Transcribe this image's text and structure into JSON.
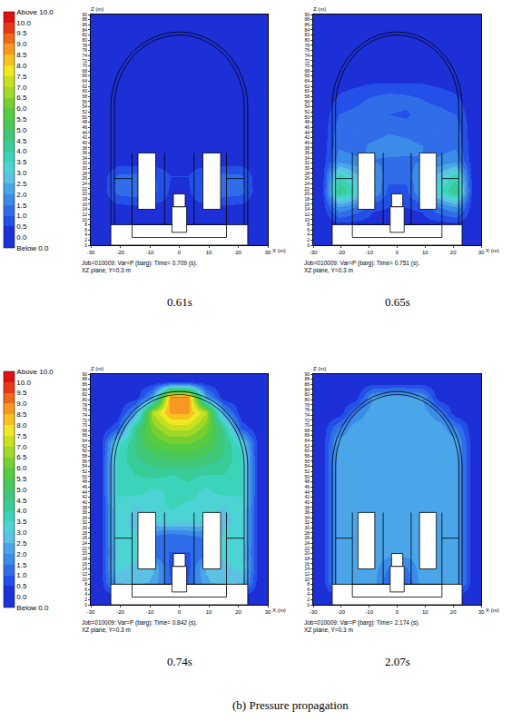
{
  "caption": "(b) Pressure propagation",
  "chart_data": [
    {
      "type": "heatmap",
      "title": "0.61s",
      "xlabel": "X (m)",
      "ylabel": "Z (m)",
      "notes": [
        "Job=010009: Var=P (barg): Time= 0.709 (s).",
        "XZ plane, Y=0.3 m"
      ],
      "x": [
        -27,
        -21,
        -15,
        -9,
        -3,
        3,
        9,
        15,
        21,
        27
      ],
      "y": [
        3,
        9,
        15,
        21,
        27,
        33,
        39,
        45,
        51,
        57,
        63,
        69,
        75,
        81,
        87
      ],
      "z": [
        [
          0.1,
          0.1,
          0.1,
          0.1,
          0.1,
          0.1,
          0.1,
          0.1,
          0.1,
          0.1
        ],
        [
          0.1,
          0.2,
          0.2,
          0.2,
          0.2,
          0.2,
          0.2,
          0.2,
          0.2,
          0.1
        ],
        [
          0.1,
          0.3,
          0.4,
          0.3,
          0.3,
          0.3,
          0.3,
          0.4,
          0.3,
          0.1
        ],
        [
          0.1,
          1.2,
          1.3,
          1.2,
          0.4,
          0.4,
          1.2,
          1.3,
          1.2,
          0.1
        ],
        [
          0.1,
          1.1,
          1.2,
          1.1,
          0.5,
          0.5,
          1.1,
          1.2,
          1.1,
          0.1
        ],
        [
          0.1,
          0.2,
          0.2,
          0.2,
          0.2,
          0.2,
          0.2,
          0.2,
          0.2,
          0.1
        ],
        [
          0.1,
          0.2,
          0.2,
          0.2,
          0.2,
          0.2,
          0.2,
          0.2,
          0.2,
          0.1
        ],
        [
          0.1,
          0.2,
          0.2,
          0.2,
          0.2,
          0.2,
          0.2,
          0.2,
          0.2,
          0.1
        ],
        [
          0.1,
          0.2,
          0.2,
          0.2,
          0.2,
          0.2,
          0.2,
          0.2,
          0.2,
          0.1
        ],
        [
          0.1,
          0.2,
          0.2,
          0.2,
          0.2,
          0.2,
          0.2,
          0.2,
          0.2,
          0.1
        ],
        [
          0.1,
          0.2,
          0.2,
          0.2,
          0.2,
          0.2,
          0.2,
          0.2,
          0.2,
          0.1
        ],
        [
          0.1,
          0.1,
          0.2,
          0.2,
          0.2,
          0.2,
          0.2,
          0.2,
          0.1,
          0.1
        ],
        [
          0.1,
          0.1,
          0.2,
          0.2,
          0.2,
          0.2,
          0.2,
          0.2,
          0.1,
          0.1
        ],
        [
          0.1,
          0.1,
          0.1,
          0.2,
          0.2,
          0.2,
          0.2,
          0.1,
          0.1,
          0.1
        ],
        [
          0.1,
          0.1,
          0.1,
          0.1,
          0.1,
          0.1,
          0.1,
          0.1,
          0.1,
          0.1
        ]
      ],
      "xlim": [
        -30,
        30
      ],
      "xticks": [
        -30,
        -20,
        -10,
        0,
        10,
        20,
        30
      ],
      "ylim": [
        0,
        90
      ],
      "yticks": [
        0,
        2,
        4,
        6,
        8,
        10,
        12,
        14,
        16,
        18,
        20,
        22,
        24,
        26,
        28,
        30,
        32,
        34,
        36,
        38,
        40,
        42,
        44,
        46,
        48,
        50,
        52,
        54,
        56,
        58,
        60,
        62,
        64,
        66,
        68,
        70,
        72,
        74,
        76,
        78,
        80,
        82,
        84,
        86,
        88,
        90
      ],
      "zlim": [
        -0.5,
        10.5
      ],
      "colors": [
        "#1c33dc",
        "#1d2fd6",
        "#2250e8",
        "#2f6ee8",
        "#3a8ce8",
        "#4aa6e8",
        "#5cc2e4",
        "#4cd4d4",
        "#3cd4b8",
        "#38cc98",
        "#40c878",
        "#48c858",
        "#58cc40",
        "#78d030",
        "#a0d828",
        "#c8e020",
        "#f0e820",
        "#f8c020",
        "#f89820",
        "#f06818",
        "#e83818",
        "#e01010"
      ],
      "zticks": [
        {
          "value": 10.5,
          "label": "Above 10.0"
        },
        {
          "value": 10,
          "label": "10.0"
        },
        9.5,
        {
          "value": 9,
          "label": "9.0"
        },
        8.5,
        {
          "value": 8,
          "label": "8.0"
        },
        7.5,
        {
          "value": 7,
          "label": "7.0"
        },
        6.5,
        {
          "value": 6,
          "label": "6.0"
        },
        5.5,
        {
          "value": 5,
          "label": "5.0"
        },
        4.5,
        {
          "value": 4,
          "label": "4.0"
        },
        3.5,
        {
          "value": 3,
          "label": "3.0"
        },
        2.5,
        {
          "value": 2,
          "label": "2.0"
        },
        1.5,
        {
          "value": 1,
          "label": "1.0"
        },
        0.5,
        {
          "value": 0,
          "label": "0.0"
        },
        {
          "value": -0.5,
          "label": "Below 0.0"
        }
      ]
    },
    {
      "type": "heatmap",
      "title": "0.65s",
      "xlabel": "X (m)",
      "ylabel": "Z (m)",
      "notes": [
        "Job=010009: Var=P (barg): Time= 0.751 (s).",
        "XZ plane, Y=0.3 m"
      ],
      "x": [
        -27,
        -21,
        -15,
        -9,
        -3,
        3,
        9,
        15,
        21,
        27
      ],
      "y": [
        3,
        9,
        15,
        21,
        27,
        33,
        39,
        45,
        51,
        57,
        63,
        69,
        75,
        81,
        87
      ],
      "z": [
        [
          0.1,
          0.1,
          0.1,
          0.1,
          0.1,
          0.1,
          0.1,
          0.1,
          0.1,
          0.1
        ],
        [
          0.1,
          0.5,
          0.4,
          0.3,
          0.3,
          0.3,
          0.3,
          0.4,
          0.5,
          0.1
        ],
        [
          0.1,
          2.0,
          1.5,
          0.6,
          0.5,
          0.5,
          0.6,
          1.5,
          2.0,
          0.1
        ],
        [
          0.1,
          4.6,
          3.4,
          2.2,
          0.8,
          0.8,
          2.2,
          3.4,
          4.6,
          0.1
        ],
        [
          0.1,
          3.8,
          2.8,
          2.0,
          1.2,
          1.2,
          2.0,
          2.8,
          3.8,
          0.1
        ],
        [
          0.1,
          1.8,
          1.6,
          1.5,
          1.4,
          1.4,
          1.5,
          1.6,
          1.8,
          0.1
        ],
        [
          0.1,
          1.4,
          1.3,
          1.6,
          1.8,
          1.7,
          1.5,
          1.3,
          1.4,
          0.1
        ],
        [
          0.1,
          1.3,
          1.5,
          1.2,
          1.4,
          1.3,
          1.1,
          1.5,
          1.3,
          0.1
        ],
        [
          0.1,
          1.0,
          1.2,
          1.4,
          1.0,
          0.9,
          1.3,
          1.2,
          1.0,
          0.1
        ],
        [
          0.1,
          0.6,
          0.8,
          1.1,
          1.3,
          1.2,
          1.0,
          0.8,
          0.6,
          0.1
        ],
        [
          0.1,
          0.3,
          0.4,
          0.5,
          0.5,
          0.5,
          0.5,
          0.4,
          0.3,
          0.1
        ],
        [
          0.1,
          0.1,
          0.3,
          0.3,
          0.3,
          0.3,
          0.3,
          0.3,
          0.1,
          0.1
        ],
        [
          0.1,
          0.1,
          0.2,
          0.2,
          0.2,
          0.2,
          0.2,
          0.2,
          0.1,
          0.1
        ],
        [
          0.1,
          0.1,
          0.1,
          0.2,
          0.2,
          0.2,
          0.2,
          0.1,
          0.1,
          0.1
        ],
        [
          0.1,
          0.1,
          0.1,
          0.1,
          0.1,
          0.1,
          0.1,
          0.1,
          0.1,
          0.1
        ]
      ],
      "xlim": [
        -30,
        30
      ],
      "xticks": [
        -30,
        -20,
        -10,
        0,
        10,
        20,
        30
      ],
      "ylim": [
        0,
        90
      ],
      "yticks": [
        0,
        2,
        4,
        6,
        8,
        10,
        12,
        14,
        16,
        18,
        20,
        22,
        24,
        26,
        28,
        30,
        32,
        34,
        36,
        38,
        40,
        42,
        44,
        46,
        48,
        50,
        52,
        54,
        56,
        58,
        60,
        62,
        64,
        66,
        68,
        70,
        72,
        74,
        76,
        78,
        80,
        82,
        84,
        86,
        88,
        90
      ],
      "zlim": [
        -0.5,
        10.5
      ],
      "colors": [
        "#1c33dc",
        "#1d2fd6",
        "#2250e8",
        "#2f6ee8",
        "#3a8ce8",
        "#4aa6e8",
        "#5cc2e4",
        "#4cd4d4",
        "#3cd4b8",
        "#38cc98",
        "#40c878",
        "#48c858",
        "#58cc40",
        "#78d030",
        "#a0d828",
        "#c8e020",
        "#f0e820",
        "#f8c020",
        "#f89820",
        "#f06818",
        "#e83818",
        "#e01010"
      ]
    },
    {
      "type": "heatmap",
      "title": "0.74s",
      "xlabel": "X (m)",
      "ylabel": "Z (m)",
      "notes": [
        "Job=010009: Var=P (barg): Time= 0.842 (s).",
        "XZ plane, Y=0.3 m"
      ],
      "x": [
        -27,
        -21,
        -15,
        -9,
        -3,
        3,
        9,
        15,
        21,
        27
      ],
      "y": [
        3,
        9,
        15,
        21,
        27,
        33,
        39,
        45,
        51,
        57,
        63,
        69,
        75,
        81,
        87
      ],
      "z": [
        [
          0.1,
          0.1,
          0.1,
          0.1,
          0.1,
          0.1,
          0.1,
          0.1,
          0.1,
          0.1
        ],
        [
          0.1,
          2.6,
          2.8,
          2.4,
          1.0,
          1.0,
          2.4,
          2.8,
          2.6,
          0.1
        ],
        [
          0.1,
          3.2,
          2.8,
          2.6,
          0.8,
          0.8,
          2.6,
          2.8,
          3.2,
          0.1
        ],
        [
          0.1,
          3.0,
          3.4,
          1.0,
          1.0,
          1.0,
          1.0,
          3.4,
          3.0,
          0.1
        ],
        [
          0.1,
          3.3,
          3.1,
          1.5,
          1.2,
          1.4,
          1.6,
          3.1,
          3.3,
          0.1
        ],
        [
          0.1,
          3.2,
          2.8,
          3.0,
          3.3,
          3.1,
          3.0,
          2.8,
          3.2,
          0.1
        ],
        [
          0.1,
          3.4,
          3.0,
          3.2,
          3.6,
          3.4,
          3.2,
          3.0,
          3.4,
          0.1
        ],
        [
          0.1,
          3.6,
          3.8,
          3.4,
          3.6,
          3.8,
          3.4,
          3.8,
          3.6,
          0.1
        ],
        [
          0.1,
          3.6,
          4.0,
          4.2,
          4.0,
          4.2,
          4.0,
          4.0,
          3.6,
          0.1
        ],
        [
          0.1,
          3.6,
          4.4,
          4.8,
          5.0,
          5.0,
          4.8,
          4.4,
          3.6,
          0.1
        ],
        [
          0.1,
          3.2,
          4.6,
          5.6,
          6.0,
          6.0,
          5.6,
          4.6,
          3.2,
          0.1
        ],
        [
          0.1,
          0.8,
          4.4,
          6.2,
          7.2,
          7.2,
          6.2,
          4.4,
          0.8,
          0.1
        ],
        [
          0.1,
          0.1,
          2.0,
          7.0,
          8.6,
          8.6,
          7.0,
          2.0,
          0.1,
          0.1
        ],
        [
          0.1,
          0.1,
          0.1,
          2.0,
          9.0,
          9.0,
          2.0,
          0.1,
          0.1,
          0.1
        ],
        [
          0.1,
          0.1,
          0.1,
          0.1,
          0.1,
          0.1,
          0.1,
          0.1,
          0.1,
          0.1
        ]
      ],
      "xlim": [
        -30,
        30
      ],
      "xticks": [
        -30,
        -20,
        -10,
        0,
        10,
        20,
        30
      ],
      "ylim": [
        0,
        90
      ],
      "yticks": [
        0,
        2,
        4,
        6,
        8,
        10,
        12,
        14,
        16,
        18,
        20,
        22,
        24,
        26,
        28,
        30,
        32,
        34,
        36,
        38,
        40,
        42,
        44,
        46,
        48,
        50,
        52,
        54,
        56,
        58,
        60,
        62,
        64,
        66,
        68,
        70,
        72,
        74,
        76,
        78,
        80,
        82,
        84,
        86,
        88,
        90
      ],
      "zlim": [
        -0.5,
        10.5
      ],
      "colors": [
        "#1c33dc",
        "#1d2fd6",
        "#2250e8",
        "#2f6ee8",
        "#3a8ce8",
        "#4aa6e8",
        "#5cc2e4",
        "#4cd4d4",
        "#3cd4b8",
        "#38cc98",
        "#40c878",
        "#48c858",
        "#58cc40",
        "#78d030",
        "#a0d828",
        "#c8e020",
        "#f0e820",
        "#f8c020",
        "#f89820",
        "#f06818",
        "#e83818",
        "#e01010"
      ],
      "zticks": [
        {
          "value": 10.5,
          "label": "Above 10.0"
        },
        {
          "value": 10,
          "label": "10.0"
        },
        9.5,
        {
          "value": 9,
          "label": "9.0"
        },
        8.5,
        {
          "value": 8,
          "label": "8.0"
        },
        7.5,
        {
          "value": 7,
          "label": "7.0"
        },
        6.5,
        {
          "value": 6,
          "label": "6.0"
        },
        5.5,
        {
          "value": 5,
          "label": "5.0"
        },
        4.5,
        {
          "value": 4,
          "label": "4.0"
        },
        3.5,
        {
          "value": 3,
          "label": "3.0"
        },
        2.5,
        {
          "value": 2,
          "label": "2.0"
        },
        1.5,
        {
          "value": 1,
          "label": "1.0"
        },
        0.5,
        {
          "value": 0,
          "label": "0.0"
        },
        {
          "value": -0.5,
          "label": "Below 0.0"
        }
      ]
    },
    {
      "type": "heatmap",
      "title": "2.07s",
      "xlabel": "X (m)",
      "ylabel": "Z (m)",
      "notes": [
        "Job=010009: Var=P (barg): Time= 2.174 (s).",
        "XZ plane, Y=0.3 m"
      ],
      "x": [
        -27,
        -21,
        -15,
        -9,
        -3,
        3,
        9,
        15,
        21,
        27
      ],
      "y": [
        3,
        9,
        15,
        21,
        27,
        33,
        39,
        45,
        51,
        57,
        63,
        69,
        75,
        81,
        87
      ],
      "z": [
        [
          0.1,
          0.1,
          0.1,
          0.1,
          0.1,
          0.1,
          0.1,
          0.1,
          0.1,
          0.1
        ],
        [
          0.1,
          2.3,
          2.3,
          2.3,
          1.0,
          1.0,
          2.3,
          2.3,
          2.3,
          0.1
        ],
        [
          0.1,
          2.3,
          2.3,
          2.3,
          1.5,
          1.5,
          2.3,
          2.3,
          2.3,
          0.1
        ],
        [
          0.1,
          2.3,
          2.3,
          2.3,
          2.3,
          2.3,
          2.3,
          2.3,
          2.3,
          0.1
        ],
        [
          0.1,
          2.3,
          2.3,
          2.3,
          2.3,
          2.3,
          2.3,
          2.3,
          2.3,
          0.1
        ],
        [
          0.1,
          2.3,
          2.3,
          2.3,
          2.3,
          2.3,
          2.3,
          2.3,
          2.3,
          0.1
        ],
        [
          0.1,
          2.3,
          2.3,
          2.3,
          2.3,
          2.3,
          2.3,
          2.3,
          2.3,
          0.1
        ],
        [
          0.1,
          2.3,
          2.3,
          2.3,
          2.3,
          2.3,
          2.3,
          2.3,
          2.3,
          0.1
        ],
        [
          0.1,
          2.3,
          2.3,
          2.3,
          2.3,
          2.3,
          2.3,
          2.3,
          2.3,
          0.1
        ],
        [
          0.1,
          2.3,
          2.3,
          2.3,
          2.3,
          2.3,
          2.3,
          2.3,
          2.3,
          0.1
        ],
        [
          0.1,
          2.3,
          2.3,
          2.3,
          2.3,
          2.3,
          2.3,
          2.3,
          2.3,
          0.1
        ],
        [
          0.1,
          1.5,
          2.3,
          2.3,
          2.3,
          2.3,
          2.3,
          2.3,
          1.5,
          0.1
        ],
        [
          0.1,
          0.1,
          1.5,
          2.3,
          2.3,
          2.3,
          2.3,
          1.5,
          0.1,
          0.1
        ],
        [
          0.1,
          0.1,
          0.1,
          2.0,
          2.3,
          2.3,
          2.0,
          0.1,
          0.1,
          0.1
        ],
        [
          0.1,
          0.1,
          0.1,
          0.1,
          0.1,
          0.1,
          0.1,
          0.1,
          0.1,
          0.1
        ]
      ],
      "xlim": [
        -30,
        30
      ],
      "xticks": [
        -30,
        -20,
        -10,
        0,
        10,
        20,
        30
      ],
      "ylim": [
        0,
        90
      ],
      "yticks": [
        0,
        2,
        4,
        6,
        8,
        10,
        12,
        14,
        16,
        18,
        20,
        22,
        24,
        26,
        28,
        30,
        32,
        34,
        36,
        38,
        40,
        42,
        44,
        46,
        48,
        50,
        52,
        54,
        56,
        58,
        60,
        62,
        64,
        66,
        68,
        70,
        72,
        74,
        76,
        78,
        80,
        82,
        84,
        86,
        88,
        90
      ],
      "zlim": [
        -0.5,
        10.5
      ],
      "colors": [
        "#1c33dc",
        "#1d2fd6",
        "#2250e8",
        "#2f6ee8",
        "#3a8ce8",
        "#4aa6e8",
        "#5cc2e4",
        "#4cd4d4",
        "#3cd4b8",
        "#38cc98",
        "#40c878",
        "#48c858",
        "#58cc40",
        "#78d030",
        "#a0d828",
        "#c8e020",
        "#f0e820",
        "#f8c020",
        "#f89820",
        "#f06818",
        "#e83818",
        "#e01010"
      ]
    }
  ]
}
